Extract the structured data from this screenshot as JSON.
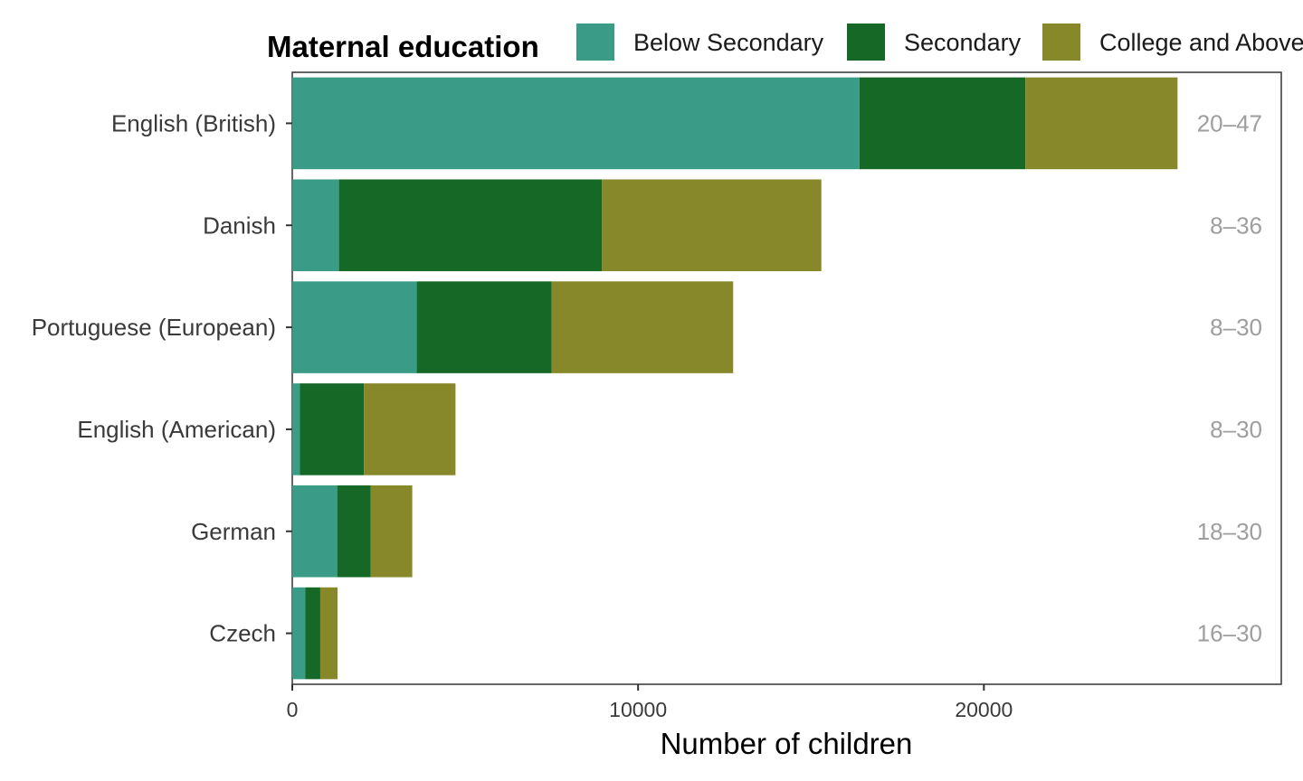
{
  "chart_data": {
    "type": "bar",
    "orientation": "horizontal",
    "stacked": true,
    "xlabel": "Number of children",
    "ylabel": "",
    "xlim": [
      0,
      28600
    ],
    "xticks": [
      0,
      10000,
      20000
    ],
    "legend": {
      "title": "Maternal education",
      "position": "top"
    },
    "categories": [
      "English (British)",
      "Danish",
      "Portuguese (European)",
      "English (American)",
      "German",
      "Czech"
    ],
    "age_ranges": [
      "20–47",
      "8–36",
      "8–30",
      "8–30",
      "18–30",
      "16–30"
    ],
    "series": [
      {
        "name": "Below Secondary",
        "color": "#3a9c87",
        "values": [
          16400,
          1350,
          3600,
          220,
          1300,
          380
        ]
      },
      {
        "name": "Secondary",
        "color": "#166827",
        "values": [
          4800,
          7600,
          3900,
          1850,
          970,
          430
        ]
      },
      {
        "name": "College and Above",
        "color": "#878829",
        "values": [
          4400,
          6350,
          5250,
          2650,
          1200,
          500
        ]
      }
    ],
    "grid": false
  }
}
